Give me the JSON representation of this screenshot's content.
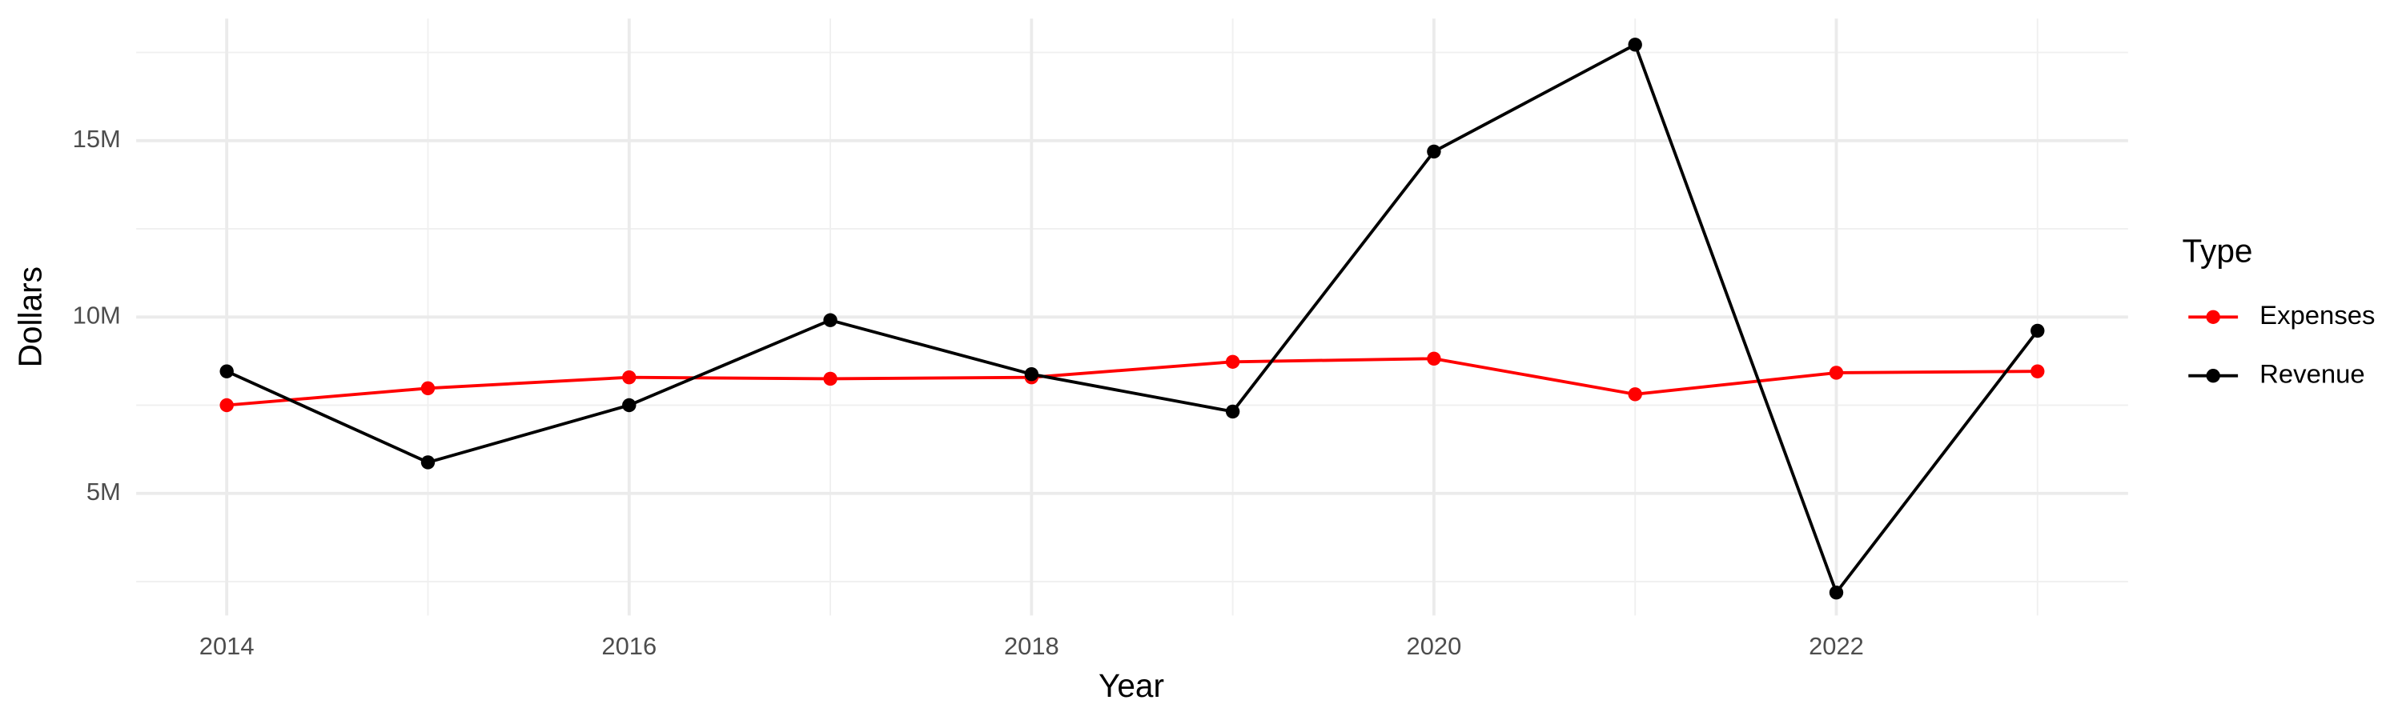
{
  "chart_data": {
    "type": "line",
    "x_label": "Year",
    "y_label": "Dollars",
    "x": [
      2014,
      2015,
      2016,
      2017,
      2018,
      2019,
      2020,
      2021,
      2022,
      2023
    ],
    "series": [
      {
        "name": "Expenses",
        "color": "#ff0000",
        "values": [
          7500000,
          7980000,
          8290000,
          8250000,
          8290000,
          8730000,
          8820000,
          7810000,
          8420000,
          8460000
        ]
      },
      {
        "name": "Revenue",
        "color": "#000000",
        "values": [
          8460000,
          5880000,
          7500000,
          9910000,
          8380000,
          7320000,
          14690000,
          17720000,
          2190000,
          9610000
        ]
      }
    ],
    "xlim": [
      2013.55,
      2023.45
    ],
    "ylim": [
      1540000,
      18460000
    ],
    "xticks": [
      2014,
      2016,
      2018,
      2020,
      2022
    ],
    "yticks": [
      {
        "value": 5000000,
        "label": "5M"
      },
      {
        "value": 10000000,
        "label": "10M"
      },
      {
        "value": 15000000,
        "label": "15M"
      }
    ],
    "grid": true,
    "legend_title": "Type",
    "legend_position": "right"
  }
}
